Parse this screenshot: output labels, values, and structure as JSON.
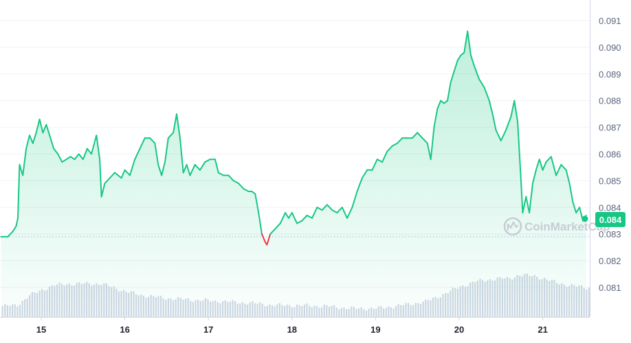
{
  "chart_data": {
    "type": "area",
    "watermark": "CoinMarketCap",
    "current_price_label": "0.084",
    "baseline": 0.0829,
    "ylim": [
      0.08,
      0.0918
    ],
    "y_ticks": [
      {
        "value": 0.081,
        "label": "0.081"
      },
      {
        "value": 0.082,
        "label": "0.082"
      },
      {
        "value": 0.083,
        "label": "0.083"
      },
      {
        "value": 0.084,
        "label": "0.084"
      },
      {
        "value": 0.085,
        "label": "0.085"
      },
      {
        "value": 0.086,
        "label": "0.086"
      },
      {
        "value": 0.087,
        "label": "0.087"
      },
      {
        "value": 0.088,
        "label": "0.088"
      },
      {
        "value": 0.089,
        "label": "0.089"
      },
      {
        "value": 0.09,
        "label": "0.090"
      },
      {
        "value": 0.091,
        "label": "0.091"
      }
    ],
    "xlim": [
      14.52,
      21.55
    ],
    "x_ticks": [
      {
        "value": 15,
        "label": "15"
      },
      {
        "value": 16,
        "label": "16"
      },
      {
        "value": 17,
        "label": "17"
      },
      {
        "value": 18,
        "label": "18"
      },
      {
        "value": 19,
        "label": "19"
      },
      {
        "value": 20,
        "label": "20"
      },
      {
        "value": 21,
        "label": "21"
      }
    ],
    "price_series": [
      [
        14.52,
        0.0829
      ],
      [
        14.6,
        0.0829
      ],
      [
        14.66,
        0.0831
      ],
      [
        14.7,
        0.0833
      ],
      [
        14.72,
        0.0836
      ],
      [
        14.74,
        0.0856
      ],
      [
        14.78,
        0.0852
      ],
      [
        14.82,
        0.0862
      ],
      [
        14.86,
        0.0867
      ],
      [
        14.9,
        0.0864
      ],
      [
        14.94,
        0.0868
      ],
      [
        14.98,
        0.0873
      ],
      [
        15.02,
        0.0868
      ],
      [
        15.06,
        0.0871
      ],
      [
        15.1,
        0.0867
      ],
      [
        15.15,
        0.0862
      ],
      [
        15.2,
        0.086
      ],
      [
        15.25,
        0.0857
      ],
      [
        15.3,
        0.0858
      ],
      [
        15.35,
        0.0859
      ],
      [
        15.4,
        0.0858
      ],
      [
        15.45,
        0.086
      ],
      [
        15.5,
        0.0858
      ],
      [
        15.55,
        0.0862
      ],
      [
        15.6,
        0.086
      ],
      [
        15.66,
        0.0867
      ],
      [
        15.7,
        0.0858
      ],
      [
        15.72,
        0.0844
      ],
      [
        15.76,
        0.0849
      ],
      [
        15.82,
        0.0851
      ],
      [
        15.88,
        0.0853
      ],
      [
        15.92,
        0.0852
      ],
      [
        15.96,
        0.0851
      ],
      [
        16.0,
        0.0854
      ],
      [
        16.06,
        0.0852
      ],
      [
        16.12,
        0.0858
      ],
      [
        16.18,
        0.0862
      ],
      [
        16.24,
        0.0866
      ],
      [
        16.3,
        0.0866
      ],
      [
        16.36,
        0.0864
      ],
      [
        16.4,
        0.0856
      ],
      [
        16.44,
        0.0852
      ],
      [
        16.48,
        0.0857
      ],
      [
        16.52,
        0.0866
      ],
      [
        16.58,
        0.0868
      ],
      [
        16.62,
        0.0875
      ],
      [
        16.66,
        0.0866
      ],
      [
        16.7,
        0.0853
      ],
      [
        16.74,
        0.0856
      ],
      [
        16.78,
        0.0852
      ],
      [
        16.84,
        0.0856
      ],
      [
        16.9,
        0.0854
      ],
      [
        16.96,
        0.0857
      ],
      [
        17.02,
        0.0858
      ],
      [
        17.08,
        0.0858
      ],
      [
        17.12,
        0.0853
      ],
      [
        17.18,
        0.0852
      ],
      [
        17.24,
        0.0852
      ],
      [
        17.3,
        0.085
      ],
      [
        17.36,
        0.0849
      ],
      [
        17.42,
        0.0847
      ],
      [
        17.48,
        0.0846
      ],
      [
        17.52,
        0.0846
      ],
      [
        17.56,
        0.0845
      ],
      [
        17.6,
        0.0838
      ],
      [
        17.64,
        0.083
      ],
      [
        17.68,
        0.0827
      ],
      [
        17.7,
        0.0826
      ],
      [
        17.74,
        0.083
      ],
      [
        17.8,
        0.0832
      ],
      [
        17.86,
        0.0834
      ],
      [
        17.92,
        0.0838
      ],
      [
        17.96,
        0.0836
      ],
      [
        18.0,
        0.0838
      ],
      [
        18.06,
        0.0834
      ],
      [
        18.12,
        0.0835
      ],
      [
        18.18,
        0.0837
      ],
      [
        18.24,
        0.0836
      ],
      [
        18.3,
        0.084
      ],
      [
        18.36,
        0.0839
      ],
      [
        18.42,
        0.0841
      ],
      [
        18.48,
        0.0839
      ],
      [
        18.54,
        0.0838
      ],
      [
        18.6,
        0.084
      ],
      [
        18.66,
        0.0836
      ],
      [
        18.72,
        0.084
      ],
      [
        18.78,
        0.0846
      ],
      [
        18.84,
        0.0851
      ],
      [
        18.9,
        0.0854
      ],
      [
        18.96,
        0.0854
      ],
      [
        19.02,
        0.0858
      ],
      [
        19.08,
        0.0857
      ],
      [
        19.14,
        0.0861
      ],
      [
        19.2,
        0.0863
      ],
      [
        19.26,
        0.0864
      ],
      [
        19.32,
        0.0866
      ],
      [
        19.38,
        0.0866
      ],
      [
        19.44,
        0.0866
      ],
      [
        19.5,
        0.0868
      ],
      [
        19.56,
        0.0866
      ],
      [
        19.62,
        0.0864
      ],
      [
        19.66,
        0.0858
      ],
      [
        19.7,
        0.087
      ],
      [
        19.74,
        0.0877
      ],
      [
        19.78,
        0.088
      ],
      [
        19.82,
        0.0879
      ],
      [
        19.86,
        0.088
      ],
      [
        19.9,
        0.0887
      ],
      [
        19.94,
        0.0891
      ],
      [
        19.98,
        0.0895
      ],
      [
        20.02,
        0.0897
      ],
      [
        20.06,
        0.0898
      ],
      [
        20.1,
        0.0906
      ],
      [
        20.14,
        0.0897
      ],
      [
        20.18,
        0.0893
      ],
      [
        20.24,
        0.0888
      ],
      [
        20.3,
        0.0885
      ],
      [
        20.36,
        0.088
      ],
      [
        20.4,
        0.0875
      ],
      [
        20.44,
        0.0869
      ],
      [
        20.5,
        0.0865
      ],
      [
        20.56,
        0.0869
      ],
      [
        20.62,
        0.0874
      ],
      [
        20.66,
        0.088
      ],
      [
        20.7,
        0.0872
      ],
      [
        20.74,
        0.085
      ],
      [
        20.76,
        0.0838
      ],
      [
        20.8,
        0.0844
      ],
      [
        20.84,
        0.0838
      ],
      [
        20.88,
        0.0849
      ],
      [
        20.92,
        0.0854
      ],
      [
        20.96,
        0.0858
      ],
      [
        21.0,
        0.0854
      ],
      [
        21.04,
        0.0857
      ],
      [
        21.1,
        0.0859
      ],
      [
        21.16,
        0.0852
      ],
      [
        21.22,
        0.0856
      ],
      [
        21.28,
        0.0854
      ],
      [
        21.32,
        0.0849
      ],
      [
        21.36,
        0.0842
      ],
      [
        21.4,
        0.0838
      ],
      [
        21.44,
        0.084
      ],
      [
        21.48,
        0.0835
      ],
      [
        21.52,
        0.0837
      ]
    ],
    "volume_relative_series": [
      [
        14.52,
        0.28
      ],
      [
        14.7,
        0.3
      ],
      [
        14.85,
        0.55
      ],
      [
        15.0,
        0.7
      ],
      [
        15.15,
        0.82
      ],
      [
        15.3,
        0.85
      ],
      [
        15.5,
        0.86
      ],
      [
        15.7,
        0.86
      ],
      [
        15.8,
        0.8
      ],
      [
        16.0,
        0.66
      ],
      [
        16.2,
        0.56
      ],
      [
        16.5,
        0.48
      ],
      [
        17.0,
        0.42
      ],
      [
        17.5,
        0.36
      ],
      [
        17.8,
        0.3
      ],
      [
        18.0,
        0.3
      ],
      [
        18.4,
        0.28
      ],
      [
        18.7,
        0.22
      ],
      [
        19.0,
        0.22
      ],
      [
        19.3,
        0.3
      ],
      [
        19.6,
        0.4
      ],
      [
        19.8,
        0.58
      ],
      [
        20.0,
        0.78
      ],
      [
        20.2,
        0.92
      ],
      [
        20.4,
        0.98
      ],
      [
        20.6,
        1.0
      ],
      [
        20.7,
        1.08
      ],
      [
        20.9,
        1.06
      ],
      [
        21.1,
        0.92
      ],
      [
        21.3,
        0.82
      ],
      [
        21.52,
        0.76
      ]
    ],
    "colors": {
      "line_up": "#16c784",
      "line_down": "#ea3943",
      "fill_top": "#16c784",
      "volume_bar": "#cfd6e4",
      "grid": "#eff2f5",
      "baseline_dots": "#a6b0c3",
      "axis_line": "#cfd6e4",
      "price_label_bg": "#16c784"
    }
  }
}
